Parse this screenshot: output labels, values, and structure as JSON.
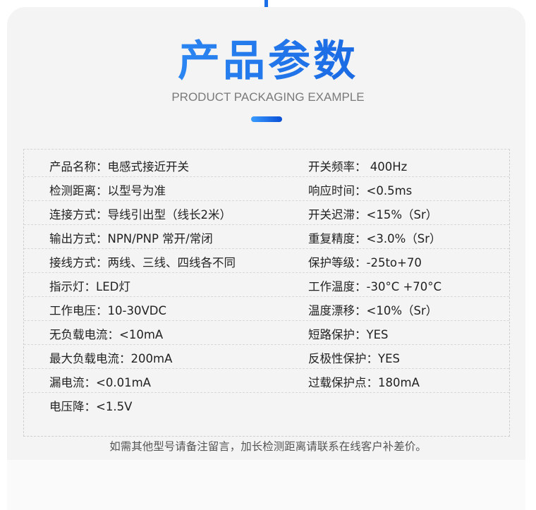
{
  "header": {
    "title": "产品参数",
    "subtitle": "PRODUCT PACKAGING EXAMPLE"
  },
  "colors": {
    "accent_start": "#3aa0ff",
    "accent_end": "#0b4fd6",
    "card_bg": "#f4f4f4"
  },
  "params": {
    "left": [
      "产品名称：电感式接近开关",
      "检测距离：以型号为准",
      "连接方式：导线引出型（线长2米）",
      "输出方式：NPN/PNP 常开/常闭",
      "接线方式：两线、三线、四线各不同",
      "指示灯：LED灯",
      "工作电压：10-30VDC",
      "无负载电流：<10mA",
      "最大负载电流：200mA",
      "漏电流：<0.01mA",
      "电压降：<1.5V"
    ],
    "right": [
      "开关频率： 400Hz",
      "响应时间：<0.5ms",
      "开关迟滞：<15%（Sr）",
      "重复精度：<3.0%（Sr）",
      "保护等级：-25to+70",
      "工作温度：-30°C +70°C",
      "温度漂移：<10%（Sr）",
      "短路保护：YES",
      "反极性保护：YES",
      "过载保护点：180mA"
    ]
  },
  "note": "如需其他型号请备注留言，加长检测距离请联系在线客户补差价。"
}
